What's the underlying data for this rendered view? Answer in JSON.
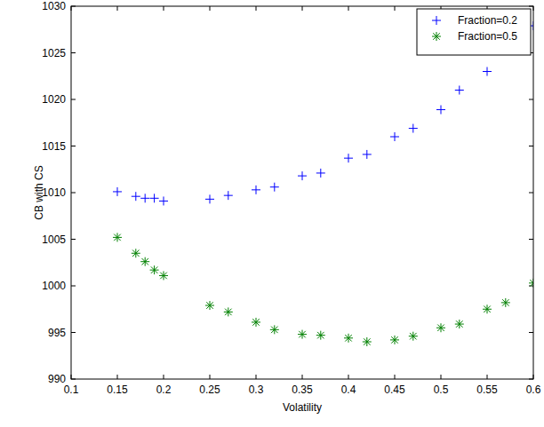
{
  "chart_data": {
    "type": "scatter",
    "x_label": "Volatility",
    "y_label": "CB with CS",
    "x": [
      0.15,
      0.17,
      0.18,
      0.19,
      0.2,
      0.25,
      0.27,
      0.3,
      0.32,
      0.35,
      0.37,
      0.4,
      0.42,
      0.45,
      0.47,
      0.5,
      0.52,
      0.55,
      0.57,
      0.6
    ],
    "series": [
      {
        "name": "Fraction=0.2",
        "color": "#0000ff",
        "marker": "plus",
        "values": [
          1010.1,
          1009.6,
          1009.4,
          1009.4,
          1009.1,
          1009.3,
          1009.7,
          1010.3,
          1010.6,
          1011.8,
          1012.1,
          1013.7,
          1014.1,
          1016.0,
          1016.9,
          1018.9,
          1021.0,
          1023.0,
          null,
          1027.9
        ]
      },
      {
        "name": "Fraction=0.5",
        "color": "#008000",
        "marker": "star",
        "values": [
          1005.2,
          1003.5,
          1002.6,
          1001.7,
          1001.1,
          997.9,
          997.2,
          996.1,
          995.3,
          994.8,
          994.7,
          994.4,
          994.0,
          994.2,
          994.6,
          995.5,
          995.9,
          997.5,
          998.2,
          1000.3
        ]
      }
    ],
    "xlim": [
      0.1,
      0.6
    ],
    "xticks": [
      0.1,
      0.15,
      0.2,
      0.25,
      0.3,
      0.35,
      0.4,
      0.45,
      0.5,
      0.55,
      0.6
    ],
    "ylim": [
      990,
      1030
    ],
    "yticks": [
      990,
      995,
      1000,
      1005,
      1010,
      1015,
      1020,
      1025,
      1030
    ],
    "grid": false,
    "legend": "northeast"
  }
}
